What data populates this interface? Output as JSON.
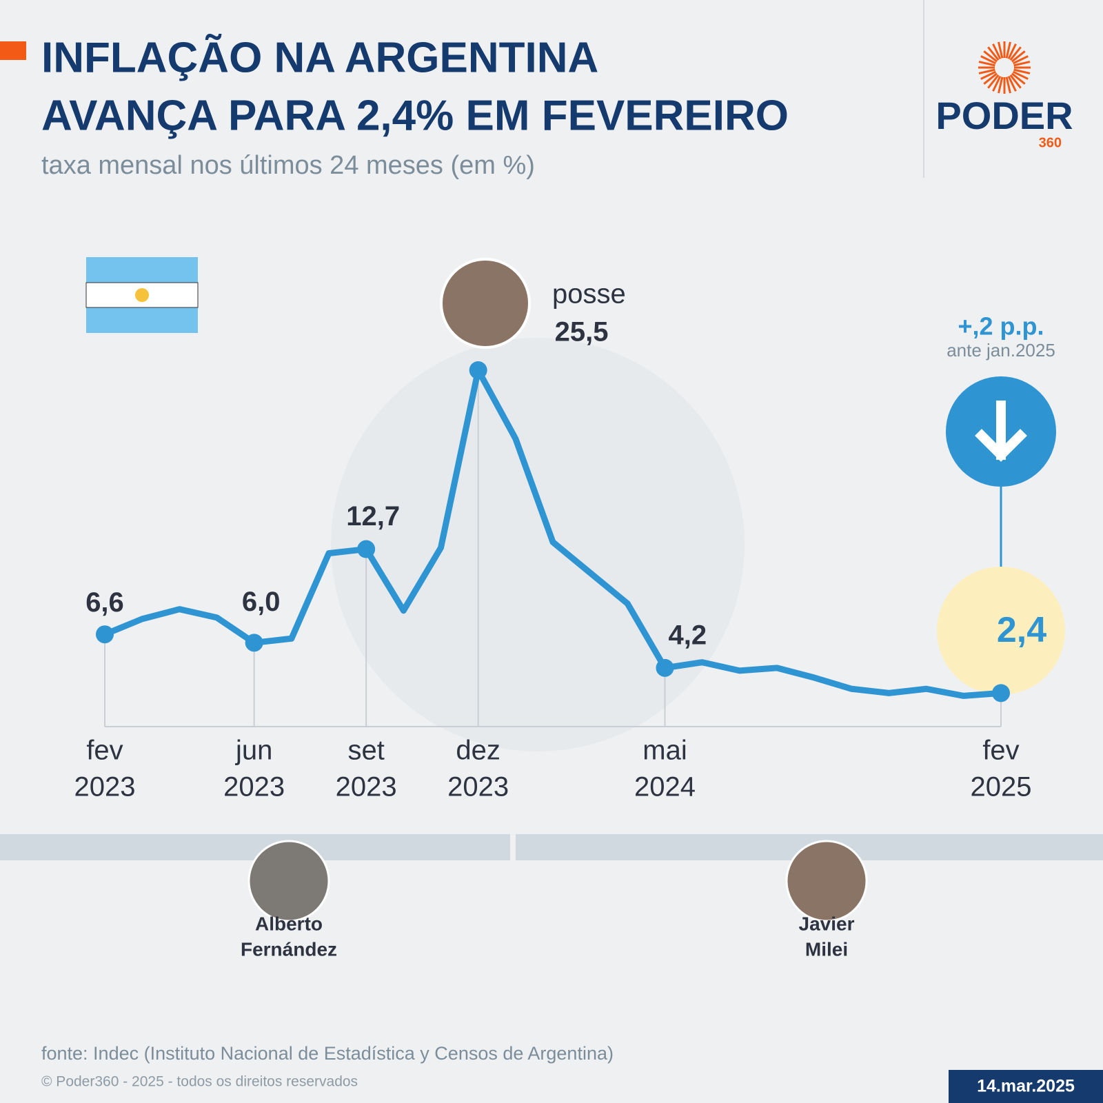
{
  "header": {
    "title": [
      "INFLAÇÃO NA ARGENTINA",
      "AVANÇA PARA 2,4% EM FEVEREIRO"
    ],
    "subtitle": "taxa mensal nos últimos 24 meses (em %)",
    "logo": "PODER",
    "logo_sub": "360"
  },
  "chart_data": {
    "type": "line",
    "color": "#2e94d2",
    "categories": [
      "fev\n2023",
      null,
      null,
      null,
      "jun\n2023",
      null,
      null,
      "set\n2023",
      null,
      null,
      "dez\n2023",
      null,
      null,
      null,
      null,
      "mai\n2024",
      null,
      null,
      null,
      null,
      null,
      null,
      null,
      null,
      "fev\n2025"
    ],
    "values": [
      6.6,
      7.7,
      8.4,
      7.8,
      6.0,
      6.3,
      12.4,
      12.7,
      8.3,
      12.8,
      25.5,
      20.6,
      13.2,
      11.0,
      8.8,
      4.2,
      4.6,
      4.0,
      4.2,
      3.5,
      2.7,
      2.4,
      2.7,
      2.2,
      2.4
    ],
    "value_labels": [
      "6,6",
      null,
      null,
      null,
      "6,0",
      null,
      null,
      "12,7",
      null,
      null,
      "25,5",
      null,
      null,
      null,
      null,
      "4,2",
      null,
      null,
      null,
      null,
      null,
      null,
      null,
      null,
      "2,4"
    ],
    "annotations": {
      "peak_note": "posse",
      "change": "+,2 p.p.",
      "change_note": "ante jan.2025"
    }
  },
  "presidents": [
    {
      "name": "Alberto\nFernández"
    },
    {
      "name": "Javier\nMilei"
    }
  ],
  "footer": {
    "source": "fonte: Indec (Instituto Nacional de Estadística y Censos de Argentina)",
    "copyright": "© Poder360 - 2025 - todos os direitos reservados",
    "date": "14.mar.2025"
  }
}
